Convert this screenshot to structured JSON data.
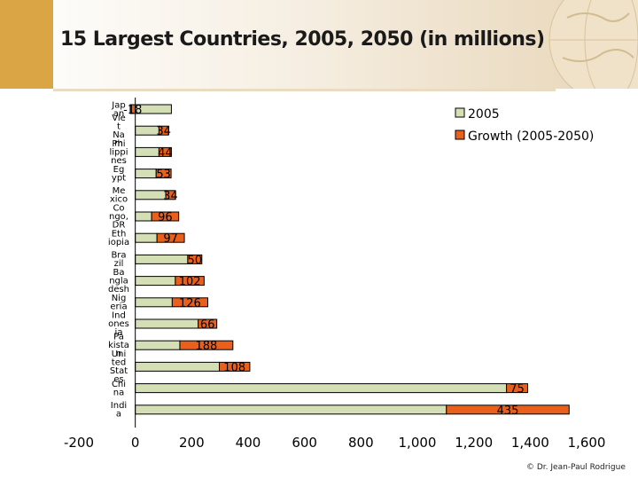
{
  "title": "15 Largest Countries, 2005, 2050 (in millions)",
  "credit": "© Dr. Jean-Paul Rodrigue",
  "colors": {
    "base_fill": "#d4dfb6",
    "growth_fill": "#e8601c",
    "bar_stroke": "#000000",
    "header_accent": "#d9a545"
  },
  "chart_data": {
    "type": "bar",
    "orientation": "horizontal",
    "stacked": true,
    "title": "15 Largest Countries, 2005, 2050 (in millions)",
    "categories": [
      "Japan",
      "Viet Nam",
      "Philippines",
      "Egypt",
      "Mexico",
      "Congo, DR",
      "Ethiopia",
      "Brazil",
      "Bangladesh",
      "Nigeria",
      "Indonesia",
      "Pakistan",
      "United States",
      "China",
      "India"
    ],
    "category_labels": [
      "Jap an",
      "Vie t Na m",
      "Phi lippi nes",
      "Eg ypt",
      "Me xico",
      "Co ngo, DR",
      "Eth iopia",
      "Bra zil",
      "Ba ngla desh",
      "Nig eria",
      "Ind ones ia",
      "Pa kista n",
      "Uni ted Stat es",
      "Chi na",
      "Indi a"
    ],
    "series": [
      {
        "name": "2005",
        "values": [
          128,
          84,
          84,
          74,
          108,
          58,
          77,
          186,
          142,
          131,
          223,
          158,
          298,
          1316,
          1103
        ]
      },
      {
        "name": "Growth (2005-2050)",
        "values": [
          -18,
          34,
          44,
          53,
          34,
          96,
          97,
          50,
          102,
          126,
          66,
          188,
          108,
          75,
          435
        ]
      }
    ],
    "data_labels": [
      "-18",
      "34",
      "44",
      "53",
      "34",
      "96",
      "97",
      "50",
      "102",
      "126",
      "66",
      "188",
      "108",
      "75",
      "435"
    ],
    "x_ticks": [
      "-200",
      "0",
      "200",
      "400",
      "600",
      "800",
      "1,000",
      "1,200",
      "1,400",
      "1,600"
    ],
    "xlim": [
      -200,
      1600
    ],
    "legend_position": "top-right",
    "grid": false
  }
}
